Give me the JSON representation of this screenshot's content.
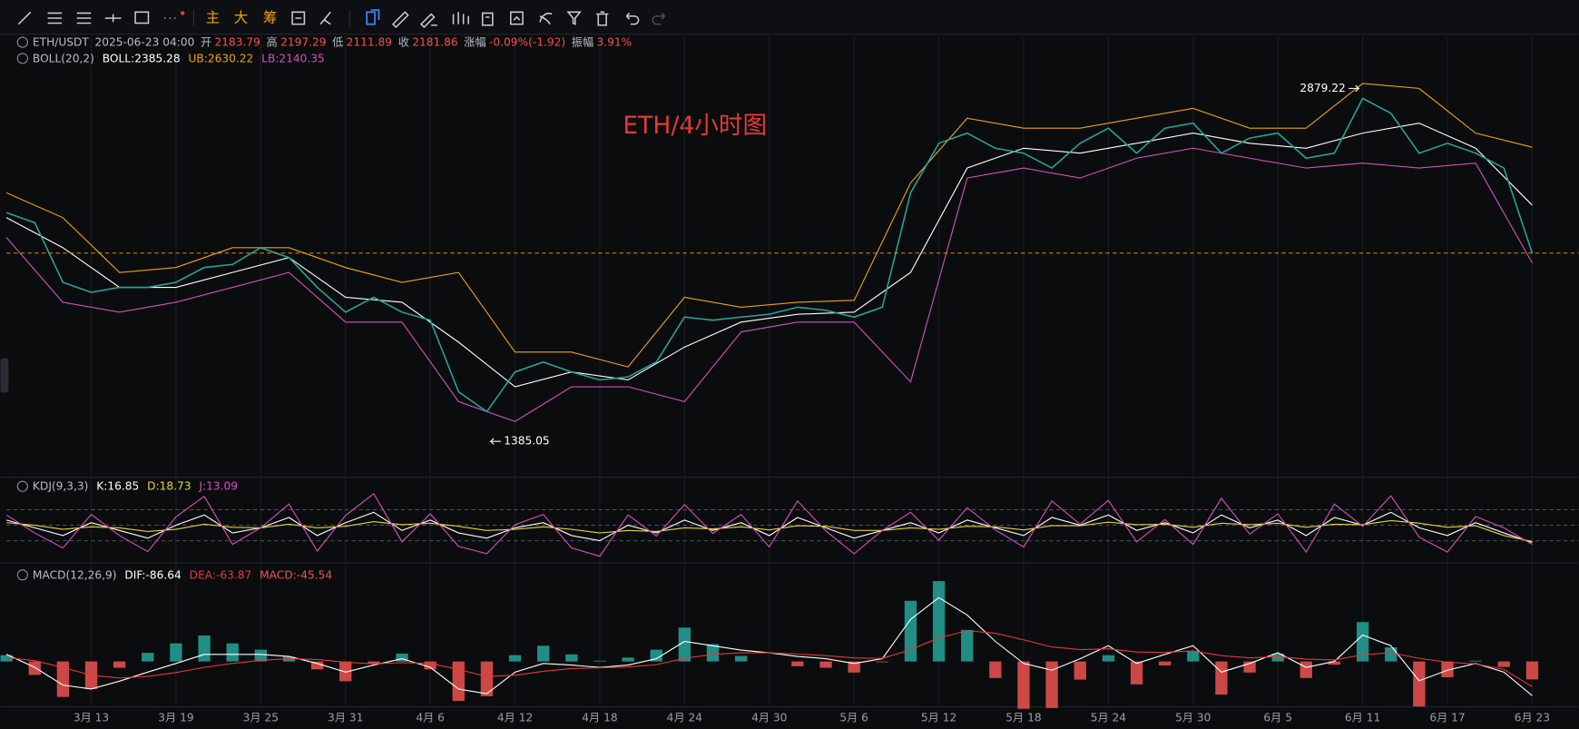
{
  "toolbar": {
    "labels": [
      "主",
      "大",
      "筹"
    ]
  },
  "chart_data": [
    {
      "type": "line",
      "title": "ETH/4小时图",
      "info": {
        "symbol": "ETH/USDT",
        "time": "2025-06-23 04:00",
        "fields": [
          [
            "开",
            "2183.79"
          ],
          [
            "高",
            "2197.29"
          ],
          [
            "低",
            "2111.89"
          ],
          [
            "收",
            "2181.86"
          ],
          [
            "涨幅",
            "-0.09%(-1.92)"
          ],
          [
            "振幅",
            "3.91%"
          ]
        ]
      },
      "x": [
        0,
        2,
        4,
        6,
        8,
        10,
        12,
        14,
        16,
        18,
        20,
        22,
        24,
        26,
        28,
        30,
        32,
        34,
        36,
        38,
        40,
        42,
        44,
        46,
        48,
        50,
        52,
        54,
        56,
        58,
        60,
        62,
        64,
        66,
        68,
        70,
        72,
        74,
        76,
        78,
        80,
        82,
        84,
        86,
        88,
        90,
        92,
        94,
        96,
        98,
        100,
        102,
        104,
        106,
        108
      ],
      "close": {
        "color": "#26a69a",
        "values": [
          2353,
          2311,
          2058,
          2016,
          2037,
          2037,
          2058,
          2121,
          2134,
          2205,
          2163,
          2037,
          1932,
          1995,
          1932,
          1898,
          1595,
          1511,
          1679,
          1721,
          1679,
          1645,
          1658,
          1721,
          1911,
          1898,
          1911,
          1923,
          1953,
          1940,
          1911,
          1953,
          2437,
          2647,
          2690,
          2626,
          2605,
          2542,
          2647,
          2711,
          2605,
          2711,
          2732,
          2605,
          2669,
          2690,
          2584,
          2605,
          2837,
          2774,
          2605,
          2647,
          2605,
          2542,
          2181.86
        ]
      },
      "boll": {
        "label": "BOLL(20,2)",
        "items": [
          "BOLL:2385.28",
          "UB:2630.22",
          "LB:2140.35"
        ],
        "x": [
          0,
          4,
          8,
          12,
          16,
          20,
          24,
          28,
          32,
          36,
          40,
          44,
          48,
          52,
          56,
          60,
          64,
          68,
          72,
          76,
          80,
          84,
          88,
          92,
          96,
          100,
          104,
          108
        ],
        "series": [
          {
            "color": "#ffffff",
            "values": [
              2332,
              2205,
              2037,
              2037,
              2100,
              2163,
              1995,
              1974,
              1805,
              1616,
              1679,
              1645,
              1784,
              1890,
              1923,
              1932,
              2100,
              2542,
              2626,
              2605,
              2647,
              2690,
              2647,
              2626,
              2690,
              2732,
              2626,
              2385.28
            ]
          },
          {
            "color": "#f0a30a",
            "values": [
              2437,
              2332,
              2100,
              2121,
              2205,
              2205,
              2121,
              2058,
              2100,
              1763,
              1763,
              1700,
              1995,
              1953,
              1974,
              1982,
              2479,
              2753,
              2711,
              2711,
              2753,
              2795,
              2711,
              2711,
              2900,
              2879,
              2690,
              2630.22
            ]
          },
          {
            "color": "#d64fc0",
            "values": [
              2248,
              1974,
              1932,
              1974,
              2037,
              2100,
              1890,
              1890,
              1553,
              1469,
              1616,
              1616,
              1553,
              1848,
              1890,
              1890,
              1637,
              2500,
              2542,
              2500,
              2584,
              2626,
              2584,
              2542,
              2563,
              2542,
              2563,
              2140.35
            ]
          }
        ]
      },
      "high": {
        "x": 96,
        "value": 2879.22
      },
      "low": {
        "x": 34,
        "value": 1385.05
      },
      "xlim": [
        0,
        111
      ],
      "xticks": [
        {
          "value": 6,
          "label": "3月 13"
        },
        {
          "value": 12,
          "label": "3月 19"
        },
        {
          "value": 18,
          "label": "3月 25"
        },
        {
          "value": 24,
          "label": "3月 31"
        },
        {
          "value": 30,
          "label": "4月 6"
        },
        {
          "value": 36,
          "label": "4月 12"
        },
        {
          "value": 42,
          "label": "4月 18"
        },
        {
          "value": 48,
          "label": "4月 24"
        },
        {
          "value": 54,
          "label": "4月 30"
        },
        {
          "value": 60,
          "label": "5月 6"
        },
        {
          "value": 66,
          "label": "5月 12"
        },
        {
          "value": 72,
          "label": "5月 18"
        },
        {
          "value": 78,
          "label": "5月 24"
        },
        {
          "value": 84,
          "label": "5月 30"
        },
        {
          "value": 90,
          "label": "6月 5"
        },
        {
          "value": 96,
          "label": "6月 11"
        },
        {
          "value": 102,
          "label": "6月 17"
        },
        {
          "value": 108,
          "label": "6月 23"
        }
      ],
      "ylim": [
        1250,
        3100
      ],
      "grid": true
    },
    {
      "type": "line",
      "label": "KDJ(9,3,3)",
      "items": [
        "K:16.85",
        "D:18.73",
        "J:13.09"
      ],
      "levels": [
        20,
        50,
        80
      ],
      "ylim": [
        -15,
        135
      ],
      "series": [
        {
          "color": "#ffffff",
          "values": [
            60,
            45,
            30,
            55,
            40,
            25,
            50,
            70,
            35,
            45,
            65,
            30,
            55,
            75,
            40,
            60,
            35,
            25,
            45,
            55,
            30,
            20,
            50,
            35,
            60,
            40,
            55,
            30,
            65,
            45,
            25,
            40,
            55,
            35,
            60,
            45,
            30,
            65,
            50,
            70,
            40,
            55,
            35,
            70,
            45,
            60,
            30,
            65,
            50,
            75,
            45,
            30,
            55,
            35,
            16.85
          ]
        },
        {
          "color": "#e6d23a",
          "values": [
            55,
            50,
            42,
            47,
            45,
            38,
            42,
            52,
            46,
            45,
            52,
            45,
            48,
            57,
            51,
            54,
            48,
            40,
            42,
            47,
            42,
            35,
            40,
            38,
            45,
            43,
            47,
            41,
            49,
            48,
            40,
            40,
            45,
            42,
            48,
            47,
            41,
            49,
            49,
            56,
            51,
            52,
            46,
            54,
            51,
            54,
            46,
            52,
            51,
            59,
            54,
            46,
            49,
            30,
            18.73
          ]
        },
        {
          "color": "#d64fc0",
          "values": [
            70,
            35,
            6,
            71,
            30,
            -1,
            66,
            106,
            13,
            45,
            91,
            0,
            69,
            111,
            18,
            72,
            9,
            -5,
            51,
            71,
            6,
            -10,
            70,
            29,
            90,
            34,
            71,
            8,
            97,
            39,
            -5,
            40,
            75,
            21,
            84,
            41,
            8,
            97,
            52,
            98,
            18,
            61,
            13,
            102,
            33,
            72,
            -2,
            91,
            48,
            107,
            27,
            -2,
            67,
            45,
            13.09
          ]
        }
      ]
    },
    {
      "type": "macd",
      "label": "MACD(12,26,9)",
      "items": [
        "DIF:-86.64",
        "DEA:-63.87",
        "MACD:-45.54"
      ],
      "ylim": [
        -110,
        240
      ],
      "series": [
        {
          "color": "#ffffff",
          "values": [
            18,
            -15,
            -60,
            -70,
            -50,
            -27,
            -5,
            18,
            18,
            18,
            13,
            -5,
            -27,
            -9,
            7,
            -15,
            -70,
            -82,
            -27,
            -5,
            -9,
            -15,
            -9,
            7,
            51,
            40,
            29,
            22,
            13,
            7,
            -5,
            7,
            107,
            162,
            118,
            51,
            -5,
            -22,
            7,
            40,
            -5,
            18,
            40,
            -27,
            -5,
            22,
            -15,
            0,
            67,
            40,
            -49,
            -22,
            -5,
            -27,
            -86.64
          ]
        },
        {
          "color": "#e53935",
          "values": [
            10,
            2,
            -15,
            -35,
            -42,
            -38,
            -28,
            -15,
            -5,
            3,
            7,
            5,
            -2,
            -6,
            -3,
            -5,
            -20,
            -38,
            -35,
            -25,
            -18,
            -16,
            -14,
            -8,
            8,
            18,
            22,
            22,
            19,
            15,
            9,
            8,
            30,
            60,
            78,
            72,
            55,
            37,
            30,
            32,
            24,
            23,
            27,
            15,
            9,
            12,
            6,
            4,
            17,
            22,
            8,
            -2,
            -6,
            -20,
            -63.87
          ]
        }
      ],
      "histogram": {
        "up_color": "#26a69a",
        "down_color": "#ef5350",
        "values": [
          16,
          -34,
          -90,
          -70,
          -16,
          22,
          46,
          66,
          46,
          30,
          12,
          -20,
          -50,
          -6,
          20,
          -20,
          -100,
          -88,
          16,
          40,
          18,
          2,
          10,
          30,
          86,
          44,
          14,
          0,
          -12,
          -16,
          -28,
          -2,
          154,
          204,
          80,
          -42,
          -120,
          -118,
          -46,
          16,
          -58,
          -10,
          26,
          -84,
          -28,
          20,
          -42,
          -8,
          100,
          36,
          -114,
          -40,
          2,
          -14,
          -45.54
        ]
      }
    }
  ]
}
